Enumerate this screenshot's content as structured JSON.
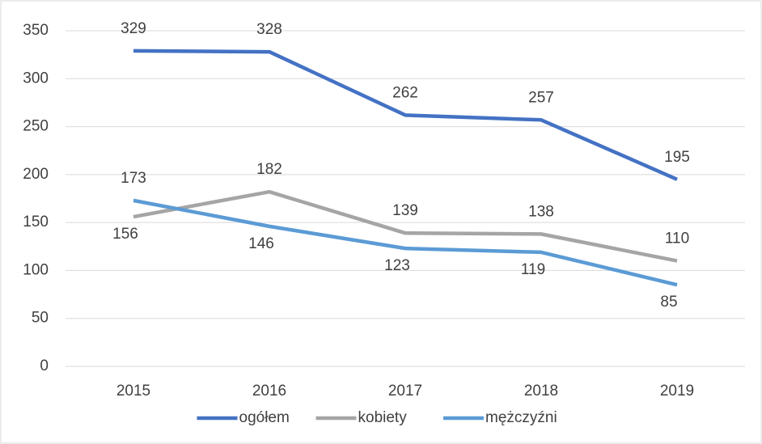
{
  "chart_data": {
    "type": "line",
    "categories": [
      "2015",
      "2016",
      "2017",
      "2018",
      "2019"
    ],
    "series": [
      {
        "name": "ogółem",
        "color": "#4472c4",
        "values": [
          329,
          328,
          262,
          257,
          195
        ]
      },
      {
        "name": "kobiety",
        "color": "#a5a5a5",
        "values": [
          156,
          182,
          139,
          138,
          110
        ]
      },
      {
        "name": "mężczyźni",
        "color": "#5b9bd5",
        "values": [
          173,
          146,
          123,
          119,
          85
        ]
      }
    ],
    "ylim": [
      0,
      350
    ],
    "yticks": [
      0,
      50,
      100,
      150,
      200,
      250,
      300,
      350
    ],
    "grid": true,
    "legend": "bottom"
  }
}
